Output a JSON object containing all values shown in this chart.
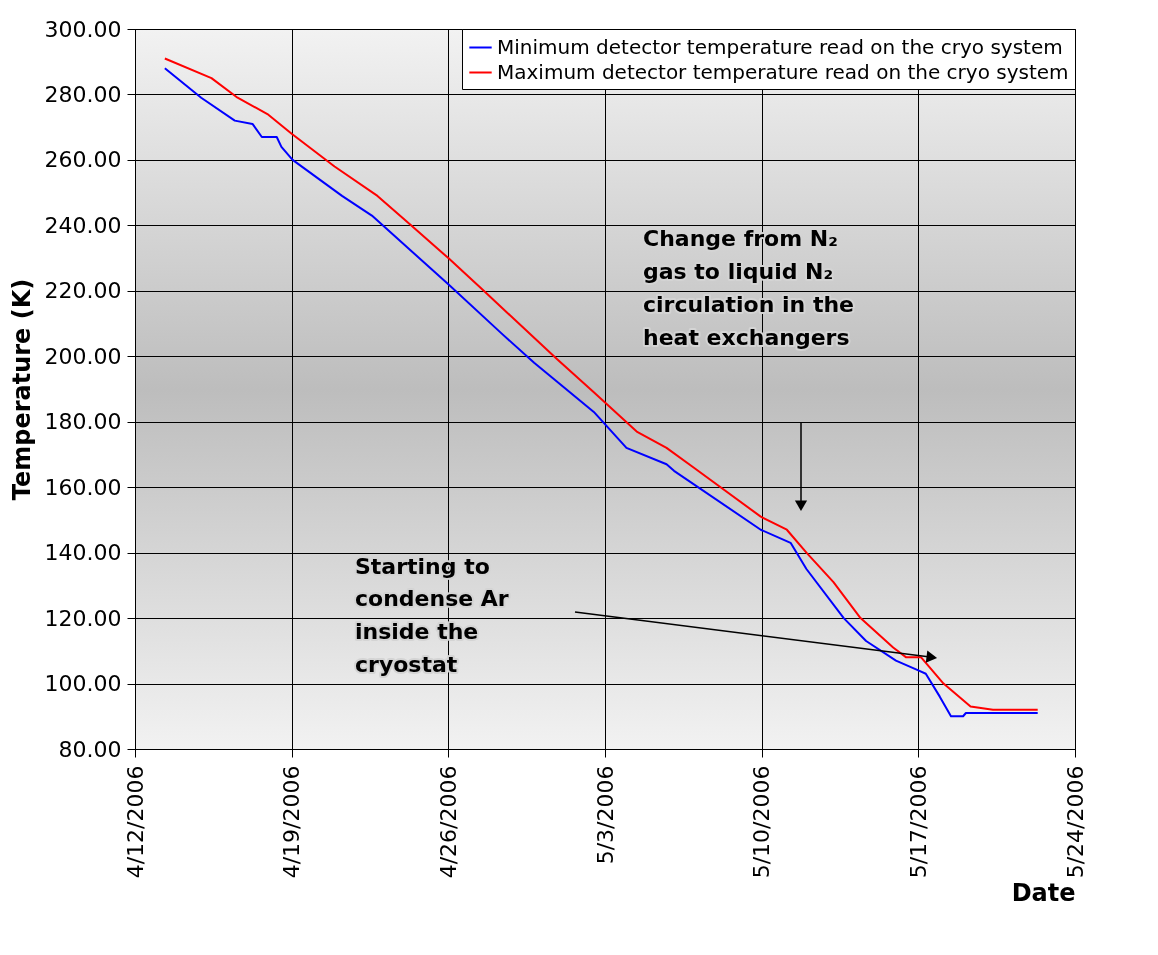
{
  "chart_data": {
    "type": "line",
    "xlabel": "Date",
    "ylabel": "Temperature (K)",
    "xlim": [
      "2006-04-12",
      "2006-05-24"
    ],
    "xticks": [
      {
        "value": "2006-04-12",
        "label": "4/12/2006"
      },
      {
        "value": "2006-04-19",
        "label": "4/19/2006"
      },
      {
        "value": "2006-04-26",
        "label": "4/26/2006"
      },
      {
        "value": "2006-05-03",
        "label": "5/3/2006"
      },
      {
        "value": "2006-05-10",
        "label": "5/10/2006"
      },
      {
        "value": "2006-05-17",
        "label": "5/17/2006"
      },
      {
        "value": "2006-05-24",
        "label": "5/24/2006"
      }
    ],
    "ylim": [
      80,
      300
    ],
    "yticks": [
      {
        "value": 80,
        "label": "80.00"
      },
      {
        "value": 100,
        "label": "100.00"
      },
      {
        "value": 120,
        "label": "120.00"
      },
      {
        "value": 140,
        "label": "140.00"
      },
      {
        "value": 160,
        "label": "160.00"
      },
      {
        "value": 180,
        "label": "180.00"
      },
      {
        "value": 200,
        "label": "200.00"
      },
      {
        "value": 220,
        "label": "220.00"
      },
      {
        "value": 240,
        "label": "240.00"
      },
      {
        "value": 260,
        "label": "260.00"
      },
      {
        "value": 280,
        "label": "280.00"
      },
      {
        "value": 300,
        "label": "300.00"
      }
    ],
    "grid": true,
    "legend": "top right",
    "series": [
      {
        "name": "Minimum detector temperature read on the cryo system",
        "color": "#0000ff",
        "x": [
          "2006-04-13T08:00",
          "2006-04-14T23:00",
          "2006-04-16T11:00",
          "2006-04-17T06:00",
          "2006-04-17T16:00",
          "2006-04-18T08:00",
          "2006-04-18T13:00",
          "2006-04-19T01:00",
          "2006-04-21T06:00",
          "2006-04-22T14:00",
          "2006-04-26T00:00",
          "2006-04-28T09:00",
          "2006-04-29T20:00",
          "2006-05-02T12:00",
          "2006-05-03T23:00",
          "2006-05-05T18:00",
          "2006-05-06T02:00",
          "2006-05-09T23:00",
          "2006-05-11T07:00",
          "2006-05-12T00:00",
          "2006-05-13T16:00",
          "2006-05-14T16:00",
          "2006-05-16T00:00",
          "2006-05-17T00:00",
          "2006-05-17T08:00",
          "2006-05-17T23:00",
          "2006-05-18T11:00",
          "2006-05-19T00:00",
          "2006-05-19T03:00",
          "2006-05-22T08:00"
        ],
        "values": [
          288,
          279,
          272,
          271,
          267,
          267,
          264,
          260,
          249,
          243,
          222,
          207,
          198,
          183,
          172,
          167,
          165,
          147,
          143,
          135,
          120,
          113,
          107,
          104,
          103,
          96,
          90,
          90,
          91,
          91
        ]
      },
      {
        "name": "Maximum detector temperature read on the cryo system",
        "color": "#ff0000",
        "x": [
          "2006-04-13T08:00",
          "2006-04-15T10:00",
          "2006-04-16T14:00",
          "2006-04-17T22:00",
          "2006-04-19T00:00",
          "2006-04-20T22:00",
          "2006-04-22T20:00",
          "2006-04-24T08:00",
          "2006-04-26T00:00",
          "2006-04-27T14:00",
          "2006-04-30T21:00",
          "2006-05-02T12:00",
          "2006-05-04T10:00",
          "2006-05-05T18:00",
          "2006-05-06T23:00",
          "2006-05-09T23:00",
          "2006-05-11T03:00",
          "2006-05-12T00:00",
          "2006-05-13T05:00",
          "2006-05-14T10:00",
          "2006-05-15T21:00",
          "2006-05-16T11:00",
          "2006-05-17T03:00",
          "2006-05-18T03:00",
          "2006-05-19T08:00",
          "2006-05-20T08:00",
          "2006-05-22T08:00"
        ],
        "values": [
          291,
          285,
          279,
          274,
          268,
          258,
          249,
          240,
          230,
          220,
          199,
          189,
          177,
          172,
          166,
          151,
          147,
          140,
          131,
          120,
          111,
          108,
          108,
          100,
          93,
          92,
          92
        ]
      }
    ],
    "annotations": [
      "Change from N₂\ngas to liquid N₂\ncirculation in the\nheat exchangers",
      "Starting to\ncondense Ar\ninside the\ncryostat"
    ]
  }
}
